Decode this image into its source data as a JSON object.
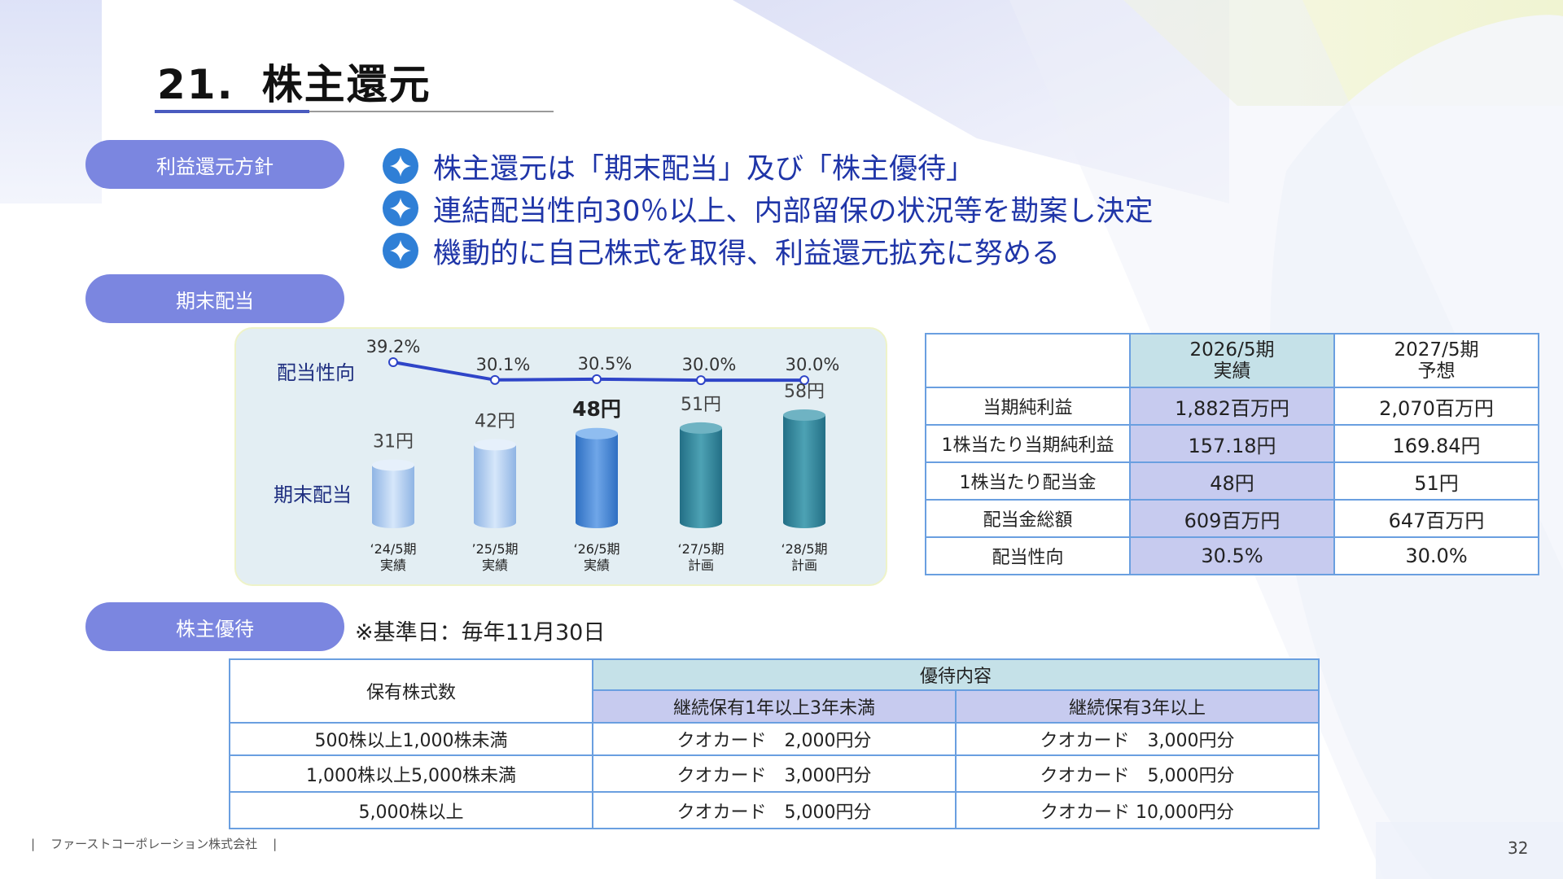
{
  "slide": {
    "number": "21.",
    "title": "株主還元",
    "page_number": "32",
    "footer_company": "ファーストコーポレーション株式会社",
    "footer_sep": "|"
  },
  "sections": {
    "policy_label": "利益還元方針",
    "dividend_label": "期末配当",
    "benefit_label": "株主優待"
  },
  "policy_bullets": [
    "株主還元は「期末配当」及び「株主優待」",
    "連結配当性向30％以上、内部留保の状況等を勘案し決定",
    "機動的に自己株式を取得、利益還元拡充に努める"
  ],
  "chart_data": {
    "type": "bar",
    "series_labels": {
      "payout": "配当性向",
      "dividend": "期末配当"
    },
    "categories": [
      {
        "period": "‘24/5期",
        "status": "実績"
      },
      {
        "period": "’25/5期",
        "status": "実績"
      },
      {
        "period": "‘26/5期",
        "status": "実績"
      },
      {
        "period": "‘27/5期",
        "status": "計画"
      },
      {
        "period": "‘28/5期",
        "status": "計画"
      }
    ],
    "dividend_values": [
      31,
      42,
      48,
      51,
      58
    ],
    "dividend_labels": [
      "31円",
      "42円",
      "48円",
      "51円",
      "58円"
    ],
    "payout_values": [
      39.2,
      30.1,
      30.5,
      30.0,
      30.0
    ],
    "payout_labels": [
      "39.2%",
      "30.1%",
      "30.5%",
      "30.0%",
      "30.0%"
    ],
    "highlight_index": 2
  },
  "fin_table": {
    "headers": [
      {
        "line1": "2026/5期",
        "line2": "実績"
      },
      {
        "line1": "2027/5期",
        "line2": "予想"
      }
    ],
    "rows": [
      {
        "label": "当期純利益",
        "v1": "1,882百万円",
        "v2": "2,070百万円"
      },
      {
        "label": "1株当たり当期純利益",
        "v1": "157.18円",
        "v2": "169.84円"
      },
      {
        "label": "1株当たり配当金",
        "v1": "48円",
        "v2": "51円"
      },
      {
        "label": "配当金総額",
        "v1": "609百万円",
        "v2": "647百万円"
      },
      {
        "label": "配当性向",
        "v1": "30.5%",
        "v2": "30.0%"
      }
    ]
  },
  "benefit": {
    "note": "※基準日：毎年11月30日",
    "header_shares": "保有株式数",
    "header_content": "優待内容",
    "sub_headers": [
      "継続保有1年以上3年未満",
      "継続保有3年以上"
    ],
    "rows": [
      {
        "shares": "500株以上1,000株未満",
        "a": "クオカード　2,000円分",
        "b": "クオカード　3,000円分"
      },
      {
        "shares": "1,000株以上5,000株未満",
        "a": "クオカード　3,000円分",
        "b": "クオカード　5,000円分"
      },
      {
        "shares": "5,000株以上",
        "a": "クオカード　5,000円分",
        "b": "クオカード 10,000円分"
      }
    ]
  },
  "colors": {
    "accent": "#4a5bbf",
    "pill": "#7b86e0",
    "bullet_text": "#1f35a8",
    "line": "#2f45c8",
    "table_border": "#6a9fe0"
  }
}
